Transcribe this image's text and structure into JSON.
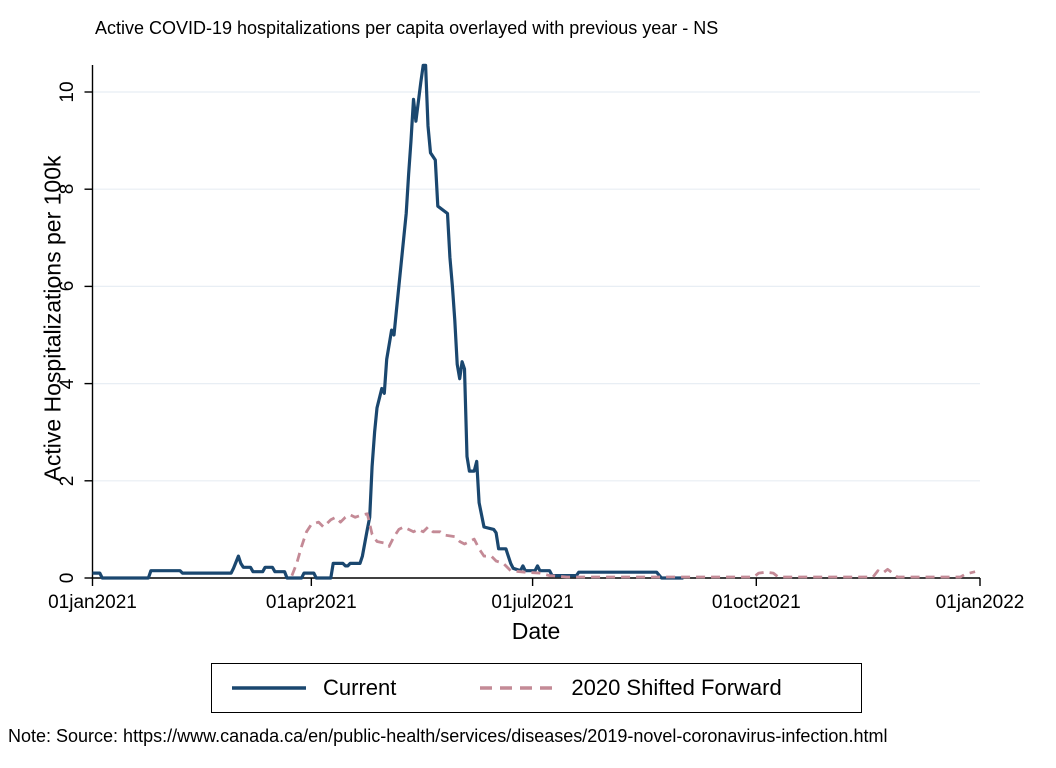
{
  "note": "Note: Source: https://www.canada.ca/en/public-health/services/diseases/2019-novel-coronavirus-infection.html",
  "colors": {
    "current_line": "#1a476f",
    "shifted_line": "#c48a96",
    "gridline": "#e8eef4",
    "axis": "#000000",
    "background": "#ffffff"
  },
  "chart_data": {
    "type": "line",
    "title": "Active COVID-19 hospitalizations per capita overlayed with previous year - NS",
    "xlabel": "Date",
    "ylabel": "Active Hospitalizations per 100k",
    "x_axis": {
      "tick_labels": [
        "01jan2021",
        "01apr2021",
        "01jul2021",
        "01oct2021",
        "01jan2022"
      ],
      "tick_dates": [
        "2021-01-01",
        "2021-04-01",
        "2021-07-01",
        "2021-10-01",
        "2022-01-01"
      ],
      "range_dates": [
        "2021-01-01",
        "2022-01-01"
      ]
    },
    "y_axis": {
      "tick_values": [
        0,
        2,
        4,
        6,
        8,
        10
      ],
      "range": [
        0,
        10.6
      ],
      "grid": true
    },
    "legend_position": "bottom",
    "series": [
      {
        "name": "Current",
        "color": "#1a476f",
        "line_style": "solid",
        "points": [
          [
            "2021-01-01",
            0.1
          ],
          [
            "2021-01-04",
            0.1
          ],
          [
            "2021-01-05",
            0
          ],
          [
            "2021-01-24",
            0
          ],
          [
            "2021-01-25",
            0.15
          ],
          [
            "2021-02-06",
            0.15
          ],
          [
            "2021-02-07",
            0.1
          ],
          [
            "2021-02-27",
            0.1
          ],
          [
            "2021-02-28",
            0.2
          ],
          [
            "2021-03-02",
            0.45
          ],
          [
            "2021-03-03",
            0.3
          ],
          [
            "2021-03-04",
            0.22
          ],
          [
            "2021-03-07",
            0.22
          ],
          [
            "2021-03-08",
            0.13
          ],
          [
            "2021-03-12",
            0.13
          ],
          [
            "2021-03-13",
            0.22
          ],
          [
            "2021-03-16",
            0.22
          ],
          [
            "2021-03-17",
            0.13
          ],
          [
            "2021-03-21",
            0.13
          ],
          [
            "2021-03-22",
            0
          ],
          [
            "2021-03-28",
            0
          ],
          [
            "2021-03-29",
            0.1
          ],
          [
            "2021-04-02",
            0.1
          ],
          [
            "2021-04-03",
            0
          ],
          [
            "2021-04-09",
            0
          ],
          [
            "2021-04-10",
            0.3
          ],
          [
            "2021-04-14",
            0.3
          ],
          [
            "2021-04-15",
            0.25
          ],
          [
            "2021-04-16",
            0.25
          ],
          [
            "2021-04-17",
            0.3
          ],
          [
            "2021-04-21",
            0.3
          ],
          [
            "2021-04-22",
            0.45
          ],
          [
            "2021-04-24",
            1.0
          ],
          [
            "2021-04-25",
            1.25
          ],
          [
            "2021-04-26",
            2.3
          ],
          [
            "2021-04-27",
            3.0
          ],
          [
            "2021-04-28",
            3.5
          ],
          [
            "2021-04-30",
            3.9
          ],
          [
            "2021-05-01",
            3.8
          ],
          [
            "2021-05-02",
            4.5
          ],
          [
            "2021-05-04",
            5.1
          ],
          [
            "2021-05-05",
            5.0
          ],
          [
            "2021-05-06",
            5.5
          ],
          [
            "2021-05-08",
            6.5
          ],
          [
            "2021-05-10",
            7.5
          ],
          [
            "2021-05-11",
            8.3
          ],
          [
            "2021-05-12",
            9.0
          ],
          [
            "2021-05-13",
            9.85
          ],
          [
            "2021-05-14",
            9.4
          ],
          [
            "2021-05-16",
            10.2
          ],
          [
            "2021-05-17",
            10.55
          ],
          [
            "2021-05-18",
            10.55
          ],
          [
            "2021-05-19",
            9.3
          ],
          [
            "2021-05-20",
            8.75
          ],
          [
            "2021-05-22",
            8.6
          ],
          [
            "2021-05-23",
            7.65
          ],
          [
            "2021-05-27",
            7.5
          ],
          [
            "2021-05-28",
            6.6
          ],
          [
            "2021-05-29",
            6.0
          ],
          [
            "2021-05-30",
            5.3
          ],
          [
            "2021-05-31",
            4.4
          ],
          [
            "2021-06-01",
            4.1
          ],
          [
            "2021-06-02",
            4.45
          ],
          [
            "2021-06-03",
            4.3
          ],
          [
            "2021-06-04",
            2.5
          ],
          [
            "2021-06-05",
            2.2
          ],
          [
            "2021-06-07",
            2.2
          ],
          [
            "2021-06-08",
            2.4
          ],
          [
            "2021-06-09",
            1.55
          ],
          [
            "2021-06-11",
            1.05
          ],
          [
            "2021-06-15",
            1.0
          ],
          [
            "2021-06-16",
            0.93
          ],
          [
            "2021-06-17",
            0.6
          ],
          [
            "2021-06-20",
            0.6
          ],
          [
            "2021-06-21",
            0.45
          ],
          [
            "2021-06-22",
            0.3
          ],
          [
            "2021-06-23",
            0.2
          ],
          [
            "2021-06-26",
            0.15
          ],
          [
            "2021-06-27",
            0.25
          ],
          [
            "2021-06-28",
            0.15
          ],
          [
            "2021-07-02",
            0.15
          ],
          [
            "2021-07-03",
            0.25
          ],
          [
            "2021-07-04",
            0.15
          ],
          [
            "2021-07-08",
            0.15
          ],
          [
            "2021-07-09",
            0.05
          ],
          [
            "2021-07-19",
            0.05
          ],
          [
            "2021-07-20",
            0.12
          ],
          [
            "2021-08-21",
            0.12
          ],
          [
            "2021-08-23",
            0
          ],
          [
            "2021-09-01",
            0
          ]
        ]
      },
      {
        "name": "2020 Shifted Forward",
        "color": "#c48a96",
        "line_style": "dashed",
        "points": [
          [
            "2021-03-24",
            0.05
          ],
          [
            "2021-03-26",
            0.3
          ],
          [
            "2021-03-28",
            0.65
          ],
          [
            "2021-03-30",
            0.95
          ],
          [
            "2021-04-01",
            1.1
          ],
          [
            "2021-04-04",
            1.15
          ],
          [
            "2021-04-06",
            1.05
          ],
          [
            "2021-04-09",
            1.2
          ],
          [
            "2021-04-11",
            1.25
          ],
          [
            "2021-04-13",
            1.15
          ],
          [
            "2021-04-15",
            1.25
          ],
          [
            "2021-04-17",
            1.3
          ],
          [
            "2021-04-19",
            1.25
          ],
          [
            "2021-04-22",
            1.3
          ],
          [
            "2021-04-24",
            1.32
          ],
          [
            "2021-04-26",
            0.9
          ],
          [
            "2021-04-28",
            0.75
          ],
          [
            "2021-05-01",
            0.72
          ],
          [
            "2021-05-03",
            0.65
          ],
          [
            "2021-05-05",
            0.85
          ],
          [
            "2021-05-07",
            1.0
          ],
          [
            "2021-05-09",
            1.05
          ],
          [
            "2021-05-11",
            1.0
          ],
          [
            "2021-05-13",
            0.95
          ],
          [
            "2021-05-15",
            1.0
          ],
          [
            "2021-05-17",
            0.95
          ],
          [
            "2021-05-19",
            1.05
          ],
          [
            "2021-05-21",
            0.95
          ],
          [
            "2021-05-24",
            0.95
          ],
          [
            "2021-05-26",
            0.88
          ],
          [
            "2021-05-30",
            0.85
          ],
          [
            "2021-06-01",
            0.75
          ],
          [
            "2021-06-03",
            0.7
          ],
          [
            "2021-06-05",
            0.75
          ],
          [
            "2021-06-07",
            0.8
          ],
          [
            "2021-06-09",
            0.6
          ],
          [
            "2021-06-11",
            0.45
          ],
          [
            "2021-06-14",
            0.45
          ],
          [
            "2021-06-16",
            0.35
          ],
          [
            "2021-06-19",
            0.3
          ],
          [
            "2021-06-22",
            0.15
          ],
          [
            "2021-06-28",
            0.12
          ],
          [
            "2021-07-04",
            0.1
          ],
          [
            "2021-07-08",
            0.05
          ],
          [
            "2021-07-15",
            0.02
          ],
          [
            "2021-09-30",
            0.02
          ],
          [
            "2021-10-02",
            0.1
          ],
          [
            "2021-10-05",
            0.12
          ],
          [
            "2021-10-08",
            0.1
          ],
          [
            "2021-10-10",
            0.02
          ],
          [
            "2021-11-18",
            0.02
          ],
          [
            "2021-11-20",
            0.15
          ],
          [
            "2021-11-22",
            0.1
          ],
          [
            "2021-11-24",
            0.18
          ],
          [
            "2021-11-26",
            0.1
          ],
          [
            "2021-11-28",
            0.02
          ],
          [
            "2021-12-24",
            0.02
          ],
          [
            "2021-12-26",
            0.08
          ],
          [
            "2021-12-30",
            0.13
          ]
        ]
      }
    ]
  }
}
